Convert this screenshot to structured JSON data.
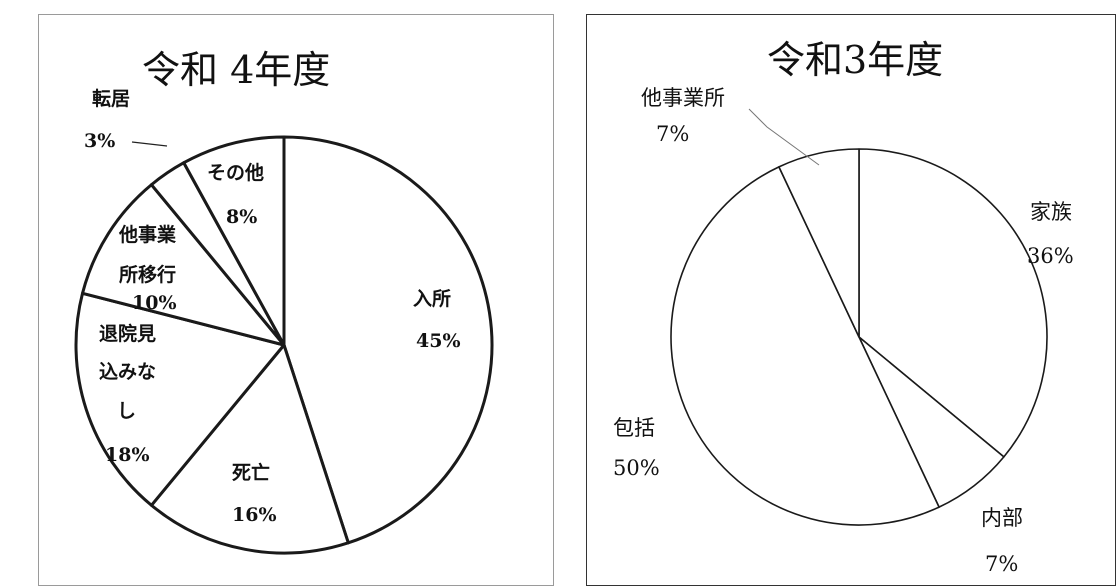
{
  "chart_data": [
    {
      "type": "pie",
      "title": "令和 4年度",
      "slices": [
        {
          "label": "入所",
          "value": 45,
          "pct": "45%"
        },
        {
          "label": "死亡",
          "value": 16,
          "pct": "16%"
        },
        {
          "label": "退院見込みなし",
          "label_lines": [
            "退院見",
            "込みな",
            "し"
          ],
          "value": 18,
          "pct": "18%"
        },
        {
          "label": "他事業所移行",
          "label_lines": [
            "他事業",
            "所移行"
          ],
          "value": 10,
          "pct": "10%"
        },
        {
          "label": "転居",
          "value": 3,
          "pct": "3%"
        },
        {
          "label": "その他",
          "value": 8,
          "pct": "8%"
        }
      ]
    },
    {
      "type": "pie",
      "title": "令和3年度",
      "slices": [
        {
          "label": "家族",
          "value": 36,
          "pct": "36%"
        },
        {
          "label": "内部",
          "value": 7,
          "pct": "7%"
        },
        {
          "label": "包括",
          "value": 50,
          "pct": "50%"
        },
        {
          "label": "他事業所",
          "value": 7,
          "pct": "7%"
        }
      ]
    }
  ]
}
